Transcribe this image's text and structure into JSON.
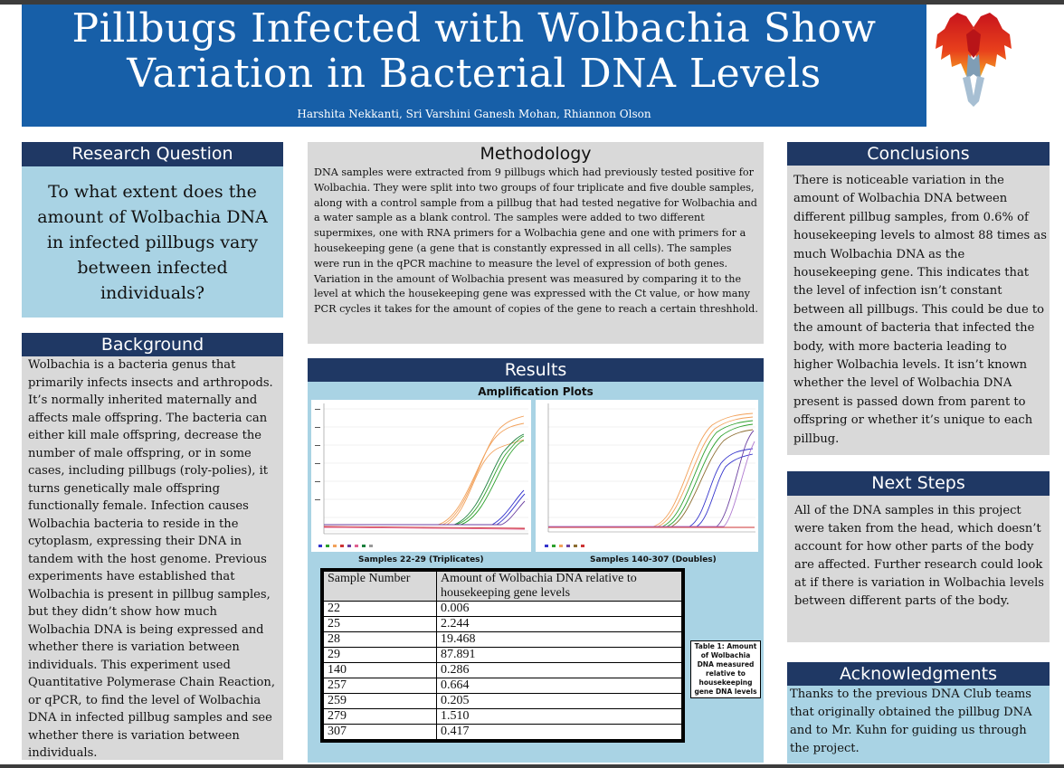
{
  "header": {
    "title_line1": "Pillbugs Infected with Wolbachia Show",
    "title_line2": "Variation in Bacterial DNA Levels",
    "authors": "Harshita Nekkanti, Sri Varshini Ganesh Mohan, Rhiannon Olson"
  },
  "research_question": {
    "title": "Research Question",
    "text": "To what extent does the amount of Wolbachia DNA in infected pillbugs vary between infected individuals?"
  },
  "background": {
    "title": "Background",
    "text": "Wolbachia is a bacteria genus that primarily infects insects and arthropods. It’s normally inherited maternally and affects male offspring. The bacteria can either kill male offspring, decrease the number of male offspring, or in some cases, including pillbugs (roly-polies), it turns genetically male offspring functionally female. Infection causes Wolbachia bacteria to reside in the cytoplasm, expressing their DNA in tandem with the host genome. Previous experiments have established that Wolbachia is present in pillbug samples, but they didn’t show how much Wolbachia DNA is being expressed and whether there is variation between individuals. This experiment used Quantitative Polymerase Chain Reaction, or qPCR, to find the level of Wolbachia DNA in infected pillbug samples and see whether there is variation between individuals."
  },
  "methodology": {
    "title": "Methodology",
    "text": "DNA samples were extracted from 9 pillbugs which had previously tested positive for Wolbachia. They were split into two groups of four triplicate and five double samples, along with a control sample from a pillbug that had tested negative for Wolbachia and a water sample as a blank control. The samples were added to two different supermixes, one with RNA primers for a Wolbachia gene and one with primers for a housekeeping gene (a gene that is constantly expressed in all cells). The samples were run in the qPCR machine to measure the level of expression of both genes. Variation in the amount of Wolbachia present was measured by comparing it to the level at which the housekeeping gene was expressed with the Ct value, or how many PCR cycles it takes for the amount of copies of the gene to reach a certain threshhold."
  },
  "results": {
    "title": "Results",
    "subtitle": "Amplification Plots",
    "plot1_caption": "Samples 22-29 (Triplicates)",
    "plot2_caption": "Samples 140-307 (Doubles)",
    "table_caption": "Table 1: Amount of Wolbachia DNA measured relative to housekeeping gene DNA levels",
    "table_headers": [
      "Sample Number",
      "Amount of Wolbachia DNA relative to housekeeping gene levels"
    ],
    "table_rows": [
      [
        "22",
        "0.006"
      ],
      [
        "25",
        "2.244"
      ],
      [
        "28",
        "19.468"
      ],
      [
        "29",
        "87.891"
      ],
      [
        "140",
        "0.286"
      ],
      [
        "257",
        "0.664"
      ],
      [
        "259",
        "0.205"
      ],
      [
        "279",
        "1.510"
      ],
      [
        "307",
        "0.417"
      ]
    ]
  },
  "conclusions": {
    "title": "Conclusions",
    "text": "There is noticeable variation in the amount of Wolbachia DNA between different pillbug samples, from 0.6% of housekeeping levels to almost 88 times as much Wolbachia DNA as the housekeeping gene. This indicates that the level of infection isn’t constant between all pillbugs. This could be due to the amount of bacteria that infected the body, with more bacteria leading to higher Wolbachia levels. It isn’t known whether the level of Wolbachia DNA present is passed down from parent to offspring or whether it’s unique to each pillbug."
  },
  "next_steps": {
    "title": "Next Steps",
    "text": "All of the DNA samples in this project were taken from the head, which doesn’t account for how other parts of the body are affected. Further research could look at if there is variation in Wolbachia levels between different parts of the body."
  },
  "acknowledgments": {
    "title": "Acknowledgments",
    "text": "Thanks to the previous DNA Club teams that originally obtained the pillbug DNA and to Mr. Kuhn for guiding us through the project."
  },
  "colors": {
    "header_blue": "#175fa8",
    "navy": "#1f3864",
    "light_blue": "#a9d3e4",
    "gray": "#d9d9d9"
  }
}
